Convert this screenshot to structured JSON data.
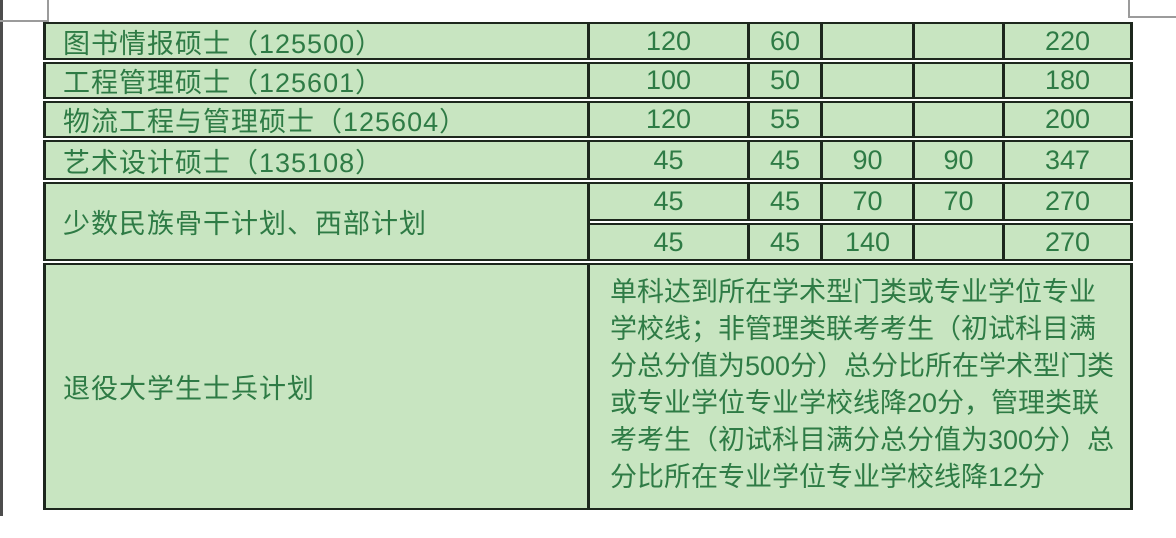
{
  "colors": {
    "cell_background": "#c8e5c1",
    "text_green": "#2e7b45",
    "border_dark": "#1d271d",
    "gridline_gray": "#9b9b9b",
    "page_edge_line": "#4d4d4d",
    "page_background": "#ffffff"
  },
  "table": {
    "rows": [
      {
        "label": "图书情报硕士（125500）",
        "values": [
          "120",
          "60",
          "",
          "",
          "220"
        ]
      },
      {
        "label": "工程管理硕士（125601）",
        "values": [
          "100",
          "50",
          "",
          "",
          "180"
        ]
      },
      {
        "label": "物流工程与管理硕士（125604）",
        "values": [
          "120",
          "55",
          "",
          "",
          "200"
        ]
      },
      {
        "label": "艺术设计硕士（135108）",
        "values": [
          "45",
          "45",
          "90",
          "90",
          "347"
        ]
      },
      {
        "label": "少数民族骨干计划、西部计划",
        "values_row1": [
          "45",
          "45",
          "70",
          "70",
          "270"
        ],
        "values_row2": [
          "45",
          "45",
          "140",
          "",
          "270"
        ]
      },
      {
        "label": "退役大学生士兵计划",
        "note": "单科达到所在学术型门类或专业学位专业学校线；非管理类联考考生（初试科目满分总分值为500分）总分比所在学术型门类或专业学位专业学校线降20分，管理类联考考生（初试科目满分总分值为300分）总分比所在专业学位专业学校线降12分"
      }
    ]
  }
}
